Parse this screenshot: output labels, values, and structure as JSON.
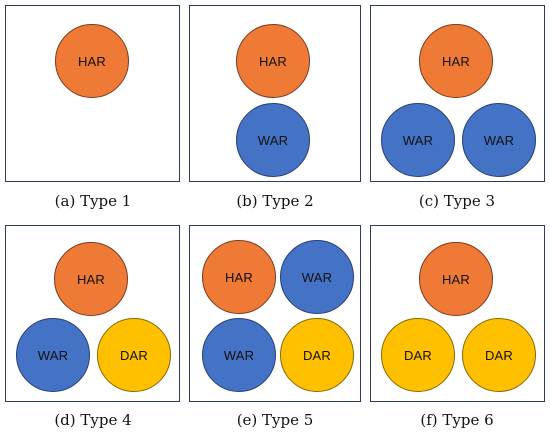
{
  "colors": {
    "HAR": "#ef7a35",
    "WAR": "#4472c4",
    "DAR": "#ffc000"
  },
  "panels": [
    {
      "caption": "(a) Type 1",
      "circles": [
        {
          "label": "HAR",
          "color": "orange"
        }
      ]
    },
    {
      "caption": "(b) Type 2",
      "circles": [
        {
          "label": "HAR",
          "color": "orange"
        },
        {
          "label": "WAR",
          "color": "blue"
        }
      ]
    },
    {
      "caption": "(c) Type 3",
      "circles": [
        {
          "label": "HAR",
          "color": "orange"
        },
        {
          "label": "WAR",
          "color": "blue"
        },
        {
          "label": "WAR",
          "color": "blue"
        }
      ]
    },
    {
      "caption": "(d) Type 4",
      "circles": [
        {
          "label": "HAR",
          "color": "orange"
        },
        {
          "label": "WAR",
          "color": "blue"
        },
        {
          "label": "DAR",
          "color": "yellow"
        }
      ]
    },
    {
      "caption": "(e) Type 5",
      "circles": [
        {
          "label": "HAR",
          "color": "orange"
        },
        {
          "label": "WAR",
          "color": "blue"
        },
        {
          "label": "WAR",
          "color": "blue"
        },
        {
          "label": "DAR",
          "color": "yellow"
        }
      ]
    },
    {
      "caption": "(f) Type 6",
      "circles": [
        {
          "label": "HAR",
          "color": "orange"
        },
        {
          "label": "DAR",
          "color": "yellow"
        },
        {
          "label": "DAR",
          "color": "yellow"
        }
      ]
    }
  ]
}
